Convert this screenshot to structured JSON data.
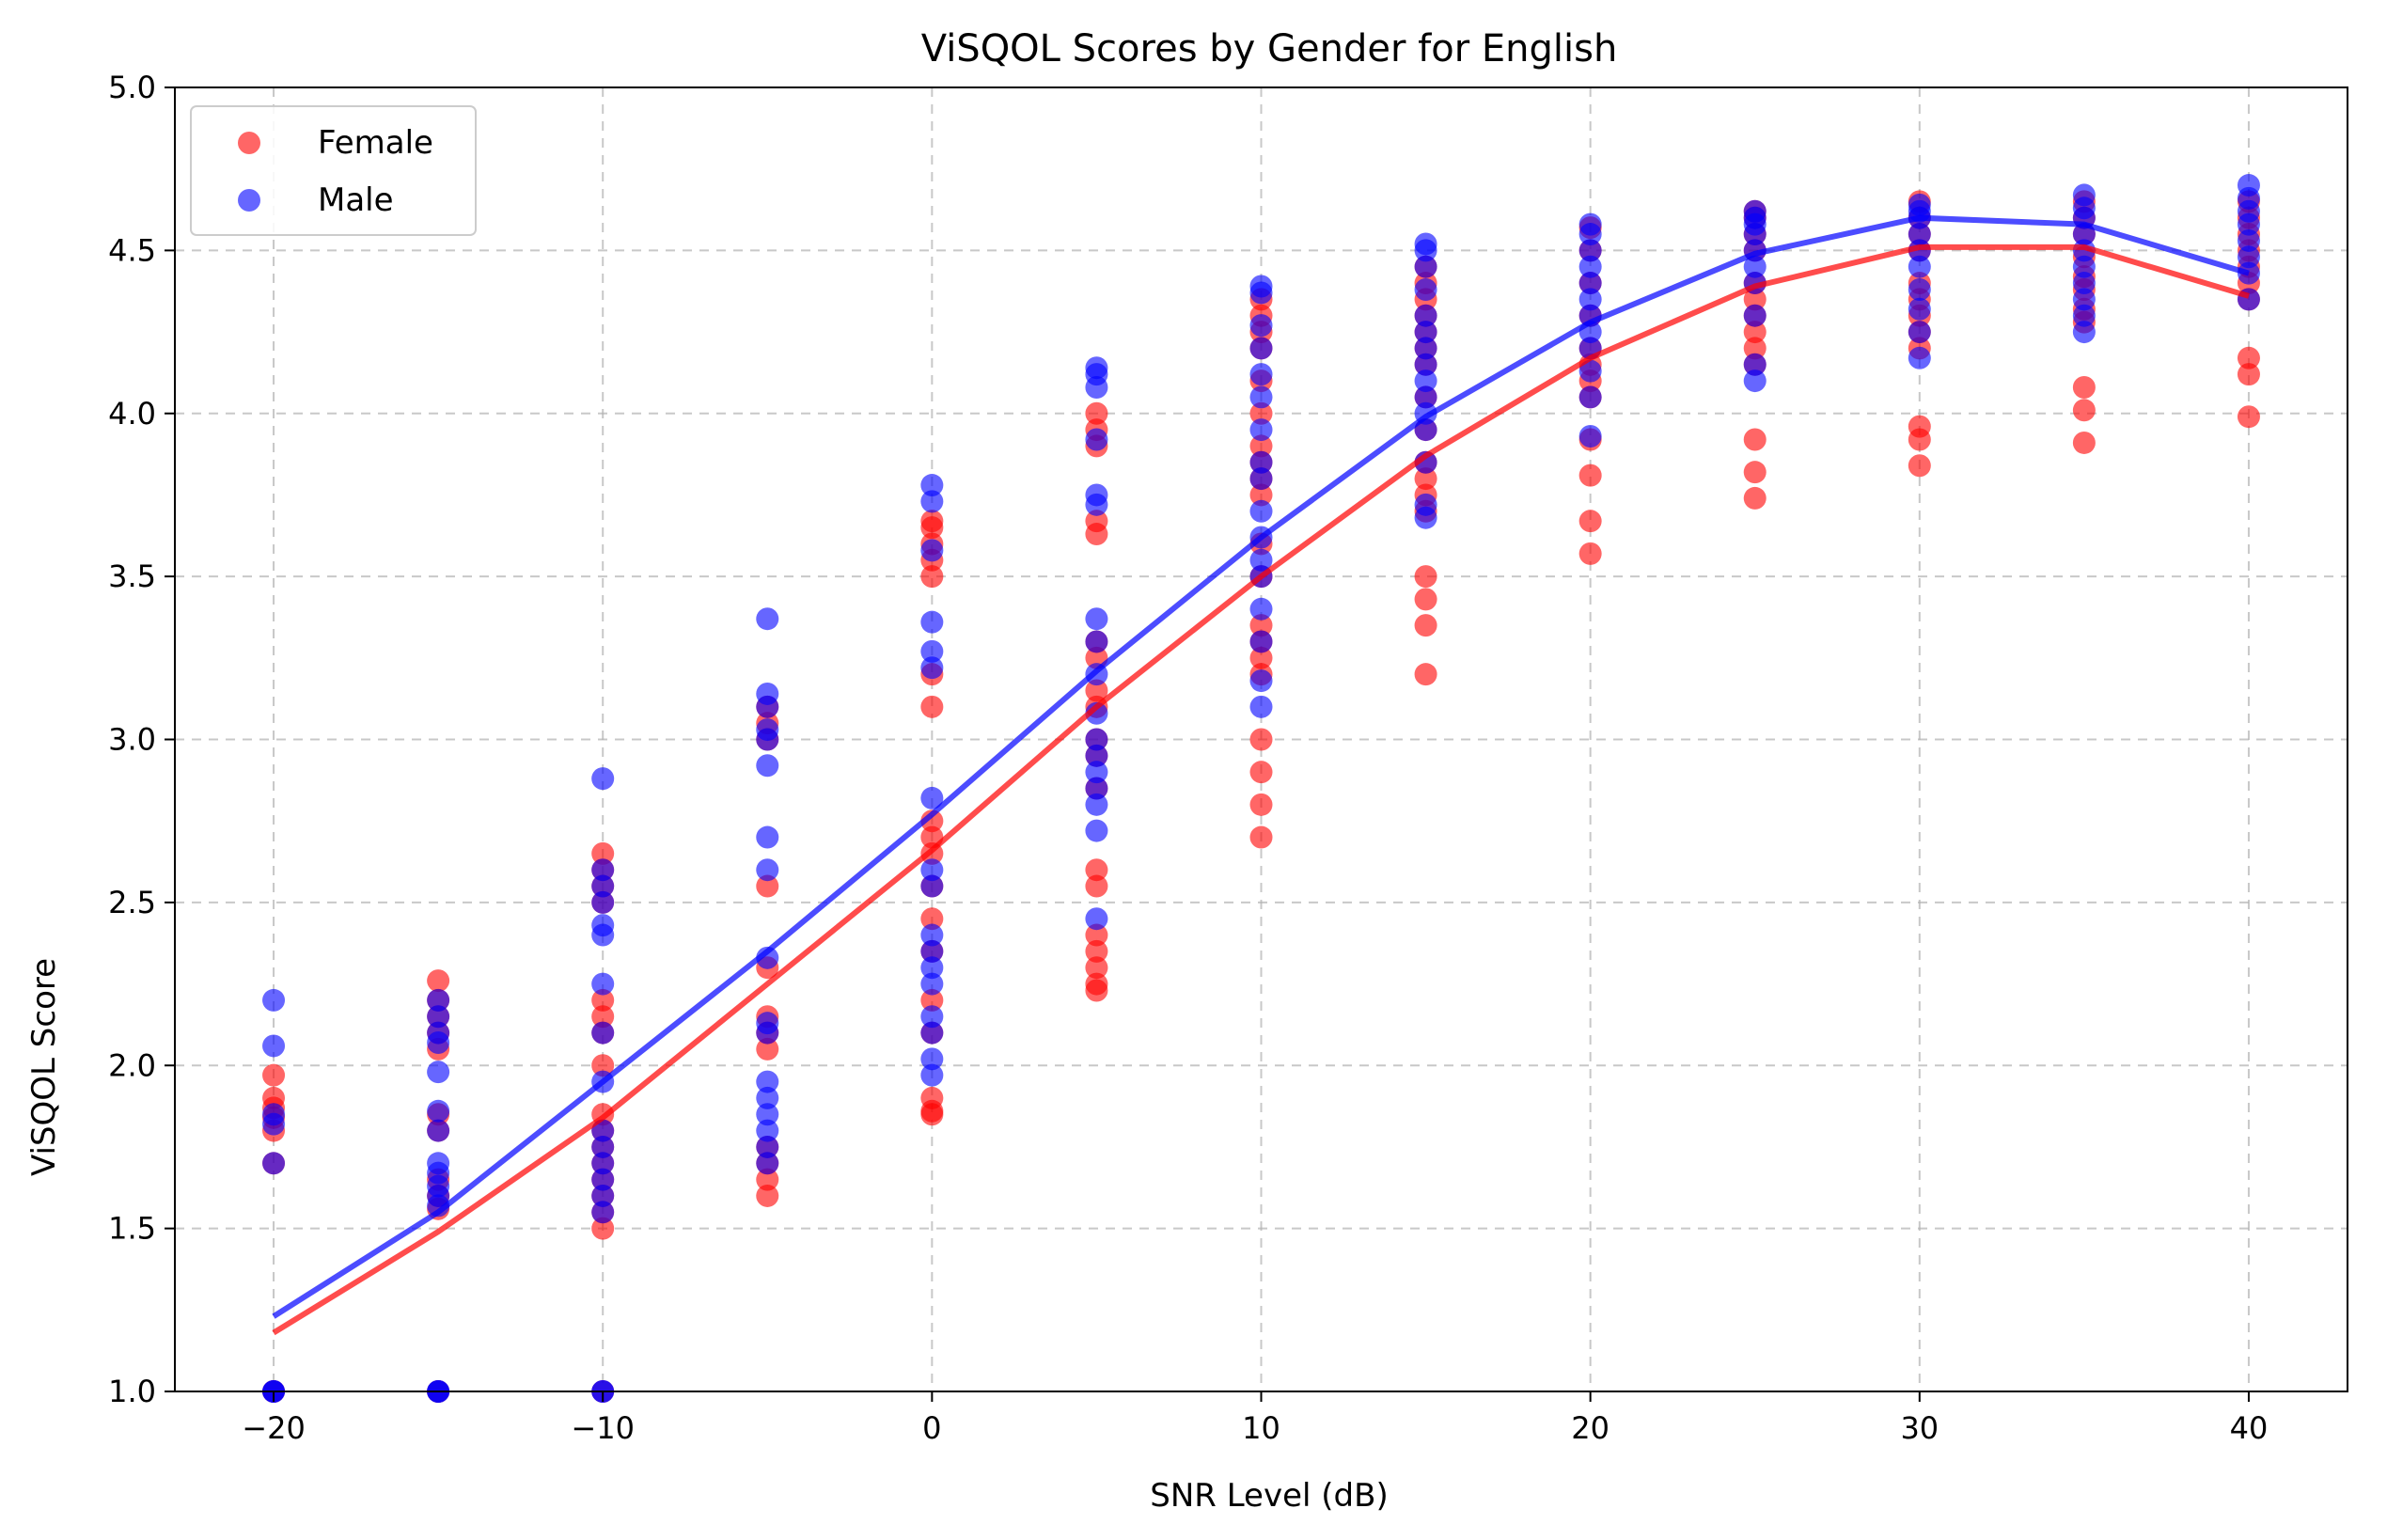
{
  "chart_data": {
    "type": "scatter",
    "title": "ViSQOL Scores by Gender for English",
    "xlabel": "SNR Level (dB)",
    "ylabel": "ViSQOL Score",
    "xlim": [
      -23,
      43
    ],
    "ylim": [
      1.0,
      5.0
    ],
    "xticks": [
      -20,
      -10,
      0,
      10,
      20,
      30,
      40
    ],
    "xtick_labels": [
      "−20",
      "−10",
      "0",
      "10",
      "20",
      "30",
      "40"
    ],
    "yticks": [
      1.0,
      1.5,
      2.0,
      2.5,
      3.0,
      3.5,
      4.0,
      4.5,
      5.0
    ],
    "ytick_labels": [
      "1.0",
      "1.5",
      "2.0",
      "2.5",
      "3.0",
      "3.5",
      "4.0",
      "4.5",
      "5.0"
    ],
    "grid": true,
    "legend_position": "top-left",
    "series": [
      {
        "name": "Female",
        "color": "#ff0000",
        "points": {
          "-20": [
            1.0,
            1.0,
            1.7,
            1.8,
            1.84,
            1.87,
            1.9,
            1.97
          ],
          "-15": [
            1.0,
            1.0,
            1.56,
            1.6,
            1.65,
            1.8,
            1.85,
            2.05,
            2.1,
            2.15,
            2.2,
            2.26
          ],
          "-10": [
            1.0,
            1.5,
            1.55,
            1.6,
            1.65,
            1.7,
            1.75,
            1.8,
            1.85,
            2.0,
            2.1,
            2.15,
            2.2,
            2.5,
            2.55,
            2.6,
            2.65
          ],
          "-5": [
            1.6,
            1.65,
            1.7,
            1.75,
            2.05,
            2.1,
            2.15,
            2.3,
            2.55,
            3.0,
            3.05,
            3.1
          ],
          "0": [
            1.85,
            1.86,
            1.9,
            2.1,
            2.2,
            2.35,
            2.45,
            2.55,
            2.65,
            2.7,
            2.75,
            3.1,
            3.2,
            3.5,
            3.55,
            3.6,
            3.65,
            3.67
          ],
          "5": [
            2.23,
            2.25,
            2.3,
            2.35,
            2.4,
            2.55,
            2.6,
            2.85,
            2.95,
            3.0,
            3.1,
            3.15,
            3.25,
            3.3,
            3.63,
            3.67,
            3.9,
            3.95,
            4.0
          ],
          "10": [
            2.7,
            2.8,
            2.9,
            3.0,
            3.2,
            3.25,
            3.3,
            3.35,
            3.5,
            3.6,
            3.75,
            3.8,
            3.85,
            3.9,
            4.0,
            4.1,
            4.2,
            4.25,
            4.3,
            4.35
          ],
          "15": [
            3.2,
            3.35,
            3.43,
            3.5,
            3.7,
            3.75,
            3.8,
            3.85,
            3.95,
            4.05,
            4.15,
            4.2,
            4.25,
            4.3,
            4.35,
            4.4,
            4.45
          ],
          "20": [
            3.57,
            3.67,
            3.81,
            3.92,
            4.05,
            4.1,
            4.15,
            4.2,
            4.3,
            4.4,
            4.5,
            4.57
          ],
          "25": [
            3.74,
            3.82,
            3.92,
            4.15,
            4.2,
            4.25,
            4.3,
            4.35,
            4.4,
            4.5,
            4.55,
            4.6,
            4.62
          ],
          "30": [
            3.84,
            3.92,
            3.96,
            4.2,
            4.25,
            4.3,
            4.35,
            4.4,
            4.5,
            4.55,
            4.6,
            4.65
          ],
          "35": [
            3.91,
            4.01,
            4.08,
            4.28,
            4.32,
            4.38,
            4.42,
            4.48,
            4.55,
            4.6,
            4.65
          ],
          "40": [
            3.99,
            4.12,
            4.17,
            4.35,
            4.4,
            4.45,
            4.5,
            4.55,
            4.6,
            4.65
          ]
        },
        "trend": [
          1.18,
          1.49,
          1.84,
          2.25,
          2.66,
          3.1,
          3.5,
          3.87,
          4.17,
          4.39,
          4.51,
          4.51,
          4.36
        ]
      },
      {
        "name": "Male",
        "color": "#0000ff",
        "points": {
          "-20": [
            1.0,
            1.0,
            1.0,
            1.7,
            1.82,
            1.85,
            2.06,
            2.2
          ],
          "-15": [
            1.0,
            1.0,
            1.0,
            1.57,
            1.6,
            1.63,
            1.67,
            1.7,
            1.8,
            1.86,
            1.98,
            2.07,
            2.1,
            2.15,
            2.2
          ],
          "-10": [
            1.0,
            1.0,
            1.55,
            1.6,
            1.65,
            1.7,
            1.75,
            1.8,
            1.95,
            2.1,
            2.25,
            2.4,
            2.43,
            2.5,
            2.55,
            2.6,
            2.88
          ],
          "-5": [
            1.7,
            1.75,
            1.8,
            1.85,
            1.9,
            1.95,
            2.1,
            2.13,
            2.33,
            2.6,
            2.7,
            2.92,
            3.0,
            3.03,
            3.1,
            3.14,
            3.37
          ],
          "0": [
            1.97,
            2.02,
            2.1,
            2.15,
            2.25,
            2.3,
            2.35,
            2.4,
            2.55,
            2.6,
            2.82,
            3.22,
            3.27,
            3.36,
            3.58,
            3.73,
            3.78
          ],
          "5": [
            2.45,
            2.72,
            2.8,
            2.85,
            2.9,
            2.95,
            3.0,
            3.08,
            3.2,
            3.3,
            3.37,
            3.72,
            3.75,
            3.92,
            4.08,
            4.12,
            4.14
          ],
          "10": [
            3.1,
            3.18,
            3.3,
            3.4,
            3.5,
            3.55,
            3.62,
            3.7,
            3.8,
            3.85,
            3.95,
            4.05,
            4.12,
            4.2,
            4.27,
            4.37,
            4.39
          ],
          "15": [
            3.68,
            3.72,
            3.85,
            3.95,
            4.0,
            4.05,
            4.1,
            4.15,
            4.2,
            4.25,
            4.3,
            4.38,
            4.45,
            4.5,
            4.52
          ],
          "20": [
            3.93,
            4.05,
            4.13,
            4.2,
            4.25,
            4.3,
            4.35,
            4.4,
            4.45,
            4.5,
            4.55,
            4.58
          ],
          "25": [
            4.1,
            4.15,
            4.3,
            4.4,
            4.45,
            4.5,
            4.55,
            4.58,
            4.6,
            4.62
          ],
          "30": [
            4.17,
            4.25,
            4.32,
            4.38,
            4.45,
            4.5,
            4.55,
            4.6,
            4.62,
            4.64
          ],
          "35": [
            4.25,
            4.3,
            4.35,
            4.4,
            4.45,
            4.5,
            4.55,
            4.6,
            4.63,
            4.67
          ],
          "40": [
            4.35,
            4.43,
            4.48,
            4.53,
            4.58,
            4.62,
            4.66,
            4.7
          ]
        },
        "trend": [
          1.23,
          1.55,
          1.95,
          2.35,
          2.77,
          3.21,
          3.62,
          3.99,
          4.28,
          4.49,
          4.6,
          4.58,
          4.43
        ]
      }
    ],
    "trend_x": [
      -20,
      -15,
      -10,
      -5,
      0,
      5,
      10,
      15,
      20,
      25,
      30,
      35,
      40
    ]
  }
}
